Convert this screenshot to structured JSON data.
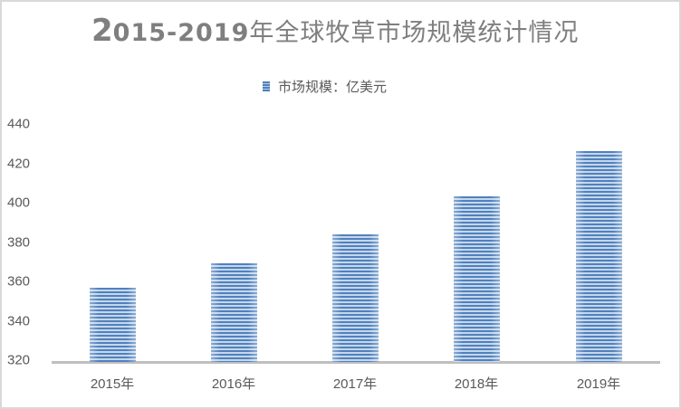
{
  "title": {
    "lead": "2",
    "years": "015-2019",
    "rest": "年全球牧草市场规模统计情况"
  },
  "legend": {
    "label": "市场规模：亿美元",
    "color": "#4f81bd"
  },
  "y_axis": {
    "ticks": [
      "440",
      "420",
      "400",
      "380",
      "360",
      "340",
      "320"
    ]
  },
  "x_axis": {
    "categories": [
      "2015年",
      "2016年",
      "2017年",
      "2018年",
      "2019年"
    ]
  },
  "chart_data": {
    "type": "bar",
    "title": "2015-2019年全球牧草市场规模统计情况",
    "categories": [
      "2015年",
      "2016年",
      "2017年",
      "2018年",
      "2019年"
    ],
    "series": [
      {
        "name": "市场规模：亿美元",
        "values": [
          357.7,
          370.1,
          384.8,
          404.1,
          427.1
        ],
        "color": "#4f81bd"
      }
    ],
    "xlabel": "",
    "ylabel": "",
    "ylim": [
      320,
      440
    ],
    "yticks": [
      320,
      340,
      360,
      380,
      400,
      420,
      440
    ],
    "grid": false,
    "legend_position": "top"
  }
}
